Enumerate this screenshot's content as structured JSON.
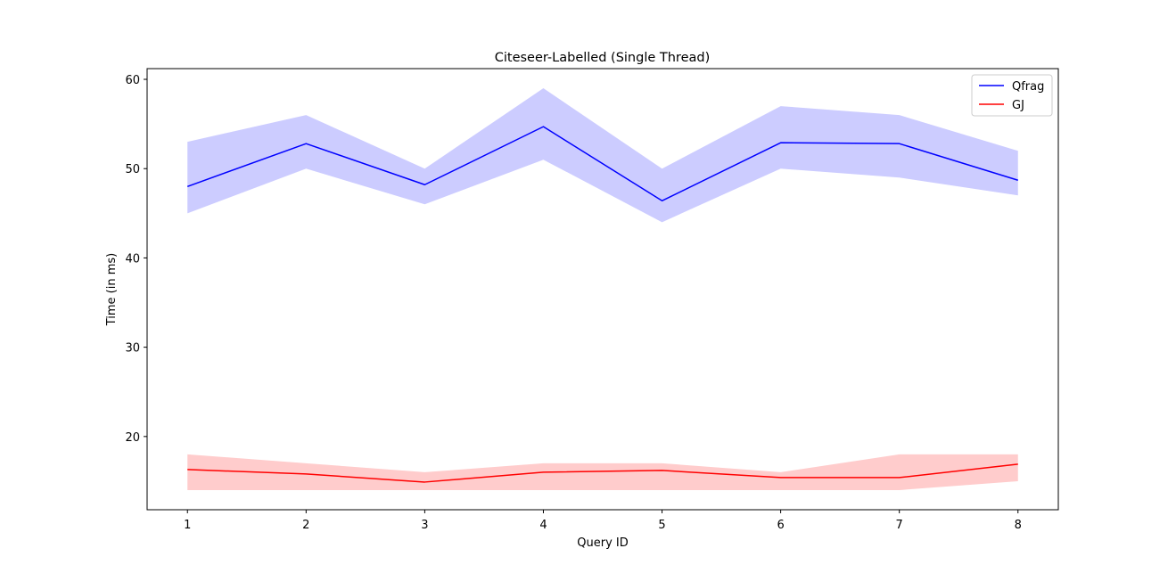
{
  "chart_data": {
    "type": "line",
    "title": "Citeseer-Labelled (Single Thread)",
    "xlabel": "Query ID",
    "ylabel": "Time (in ms)",
    "x": [
      1,
      2,
      3,
      4,
      5,
      6,
      7,
      8
    ],
    "xticks": [
      "1",
      "2",
      "3",
      "4",
      "5",
      "6",
      "7",
      "8"
    ],
    "yticks": [
      "20",
      "30",
      "40",
      "50",
      "60"
    ],
    "xlim": [
      0.66,
      8.34
    ],
    "ylim": [
      11.8,
      61.2
    ],
    "grid": false,
    "legend_position": "top-right",
    "series": [
      {
        "name": "Qfrag",
        "color": "#0000ff",
        "band_color": "#ccccff",
        "values": [
          48.0,
          52.8,
          48.2,
          54.7,
          46.4,
          52.9,
          52.8,
          48.7
        ],
        "lower": [
          45.0,
          50.0,
          46.0,
          51.0,
          44.0,
          50.0,
          49.0,
          47.0
        ],
        "upper": [
          53.0,
          56.0,
          50.0,
          59.0,
          50.0,
          57.0,
          56.0,
          52.0
        ]
      },
      {
        "name": "GJ",
        "color": "#ff0000",
        "band_color": "#ffcccc",
        "values": [
          16.3,
          15.8,
          14.9,
          16.0,
          16.2,
          15.4,
          15.4,
          16.9
        ],
        "lower": [
          14.0,
          14.0,
          14.0,
          14.0,
          14.0,
          14.0,
          14.0,
          15.0
        ],
        "upper": [
          18.0,
          17.0,
          16.0,
          17.0,
          17.0,
          16.0,
          18.0,
          18.0
        ]
      }
    ]
  }
}
